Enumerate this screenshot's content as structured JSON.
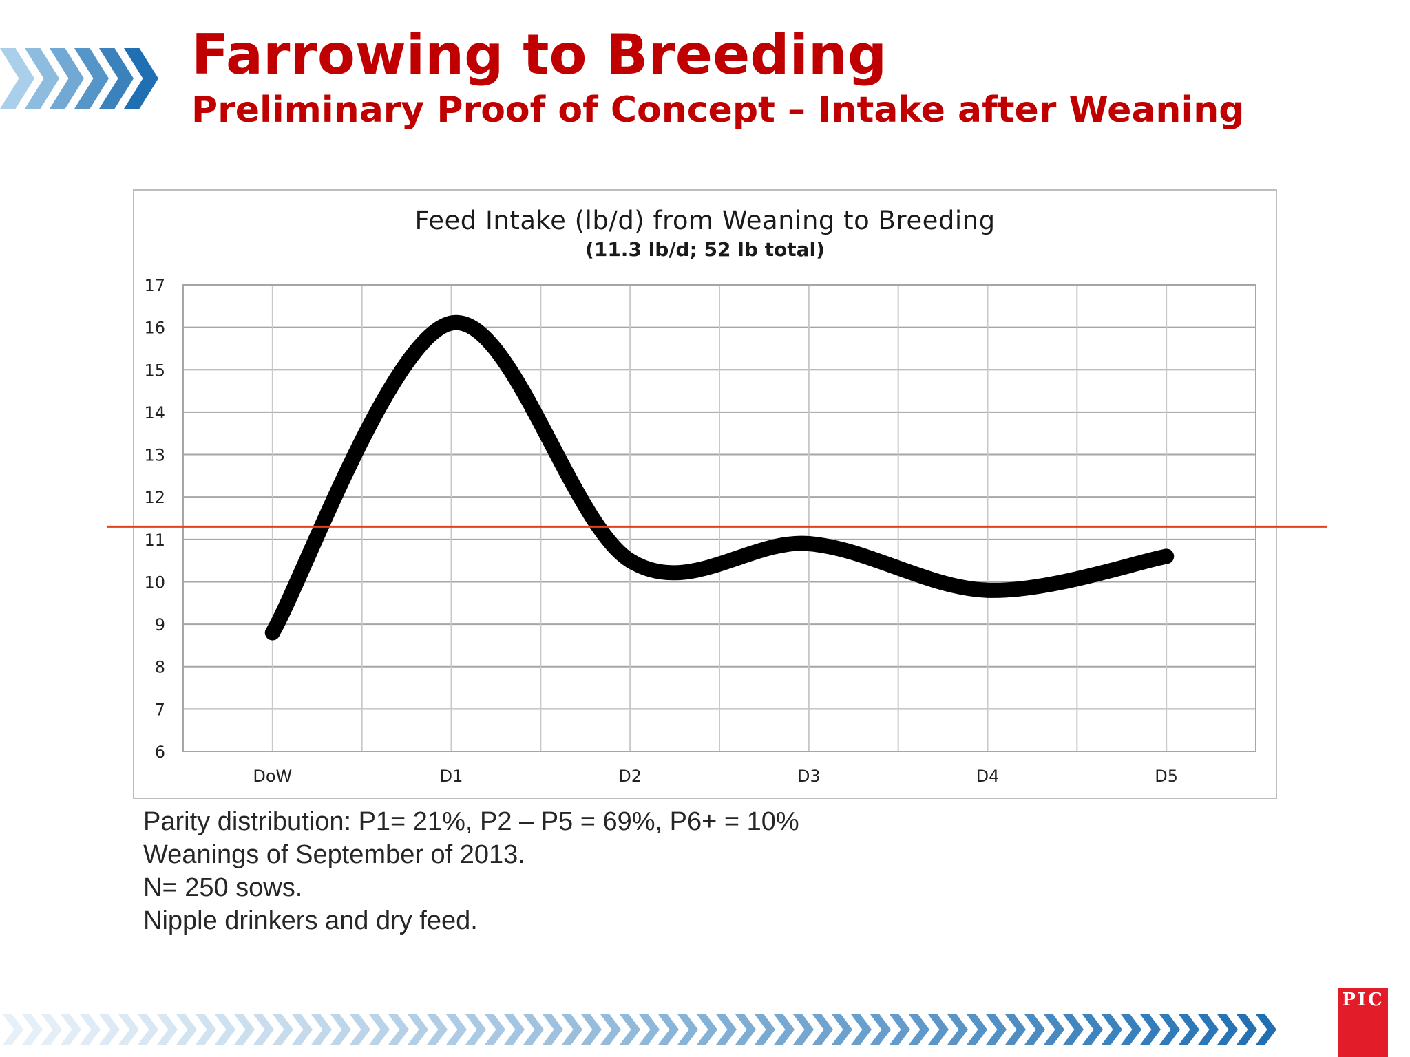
{
  "slide": {
    "title": "Farrowing to Breeding",
    "subtitle": "Preliminary Proof of Concept – Intake after Weaning",
    "logo_text": "PIC"
  },
  "chart_data": {
    "type": "line",
    "title": "Feed Intake (lb/d) from Weaning to Breeding",
    "subtitle": "(11.3 lb/d; 52 lb total)",
    "xlabel": "",
    "ylabel": "",
    "categories": [
      "DoW",
      "D1",
      "D2",
      "D3",
      "D4",
      "D5"
    ],
    "series": [
      {
        "values": [
          8.8,
          16.1,
          10.5,
          10.9,
          9.8,
          10.6
        ],
        "color": "#000000"
      }
    ],
    "reference_line": {
      "value": 11.3,
      "color": "#e8401c"
    },
    "ylim": [
      6,
      17
    ],
    "yticks": [
      6,
      7,
      8,
      9,
      10,
      11,
      12,
      13,
      14,
      15,
      16,
      17
    ],
    "grid": true,
    "legend": "none"
  },
  "notes": [
    "Parity distribution: P1= 21%, P2 – P5 = 69%, P6+ = 10%",
    "Weanings of September of 2013.",
    "N= 250 sows.",
    "Nipple drinkers and dry feed."
  ],
  "colors": {
    "title": "#c00000",
    "chevron_dark": "#1f6fb2",
    "chevron_light": "#a9cfea",
    "logo": "#e31c2a"
  },
  "icons": {
    "header_decoration": "chevrons-icon",
    "footer_decoration": "chevrons-icon"
  }
}
